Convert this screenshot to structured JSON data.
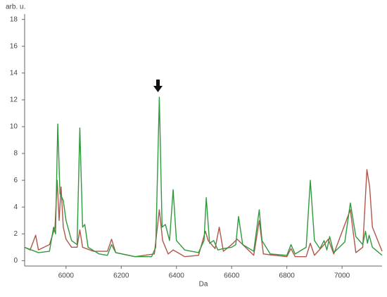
{
  "chart_data": {
    "type": "line",
    "y_label": "arb. u.",
    "x_label": "Da",
    "xlim": [
      5850,
      7145
    ],
    "ylim": [
      -0.4,
      18.4
    ],
    "xticks": [
      6000,
      6200,
      6400,
      6600,
      6800,
      7000
    ],
    "yticks": [
      0,
      2,
      4,
      6,
      8,
      10,
      12,
      14,
      16,
      18
    ],
    "series": [
      {
        "color": "#b0564a",
        "x": [
          5850,
          5870,
          5890,
          5900,
          5940,
          5960,
          5968,
          5975,
          5982,
          5990,
          6000,
          6020,
          6040,
          6050,
          6060,
          6100,
          6150,
          6165,
          6180,
          6250,
          6320,
          6338,
          6350,
          6370,
          6388,
          6430,
          6480,
          6505,
          6515,
          6540,
          6555,
          6570,
          6600,
          6620,
          6640,
          6680,
          6700,
          6715,
          6800,
          6815,
          6830,
          6870,
          6885,
          6900,
          6935,
          6950,
          6970,
          7030,
          7050,
          7075,
          7090,
          7100,
          7110,
          7145
        ],
        "values": [
          1.0,
          0.8,
          1.9,
          0.8,
          1.2,
          2.5,
          6.0,
          3.0,
          5.5,
          2.5,
          1.6,
          1.0,
          1.0,
          2.3,
          1.0,
          0.7,
          0.7,
          1.6,
          0.6,
          0.3,
          0.5,
          3.8,
          1.5,
          0.5,
          0.8,
          0.3,
          0.4,
          2.2,
          1.5,
          0.9,
          2.5,
          0.7,
          1.2,
          1.6,
          1.2,
          0.4,
          3.0,
          0.5,
          0.3,
          0.9,
          0.3,
          0.3,
          1.3,
          0.4,
          1.2,
          1.6,
          0.5,
          3.8,
          0.6,
          1.0,
          6.8,
          5.5,
          2.5,
          0.7
        ]
      },
      {
        "color": "#2e9a3c",
        "x": [
          5850,
          5900,
          5940,
          5955,
          5962,
          5970,
          5978,
          5990,
          6000,
          6020,
          6040,
          6050,
          6060,
          6068,
          6080,
          6120,
          6150,
          6165,
          6180,
          6250,
          6310,
          6325,
          6338,
          6348,
          6360,
          6375,
          6388,
          6400,
          6430,
          6480,
          6500,
          6508,
          6520,
          6535,
          6550,
          6570,
          6600,
          6615,
          6625,
          6640,
          6680,
          6700,
          6710,
          6740,
          6800,
          6815,
          6830,
          6870,
          6885,
          6900,
          6920,
          6935,
          6945,
          6955,
          6970,
          7010,
          7030,
          7050,
          7075,
          7085,
          7092,
          7098,
          7110,
          7145
        ],
        "values": [
          1.0,
          0.6,
          0.7,
          2.5,
          2.0,
          10.2,
          5.0,
          4.5,
          3.0,
          1.5,
          1.2,
          9.9,
          2.5,
          2.7,
          1.0,
          0.5,
          0.4,
          1.2,
          0.6,
          0.3,
          0.3,
          1.0,
          12.2,
          2.5,
          2.7,
          1.5,
          5.3,
          1.5,
          0.8,
          0.6,
          1.5,
          4.7,
          1.3,
          1.5,
          0.8,
          0.9,
          1.0,
          1.2,
          3.3,
          1.2,
          0.7,
          3.8,
          1.5,
          0.5,
          0.4,
          1.2,
          0.5,
          1.0,
          6.0,
          1.5,
          0.9,
          1.5,
          0.8,
          1.8,
          0.6,
          1.4,
          4.3,
          1.8,
          1.2,
          2.2,
          1.3,
          1.9,
          1.0,
          0.4
        ]
      }
    ]
  }
}
